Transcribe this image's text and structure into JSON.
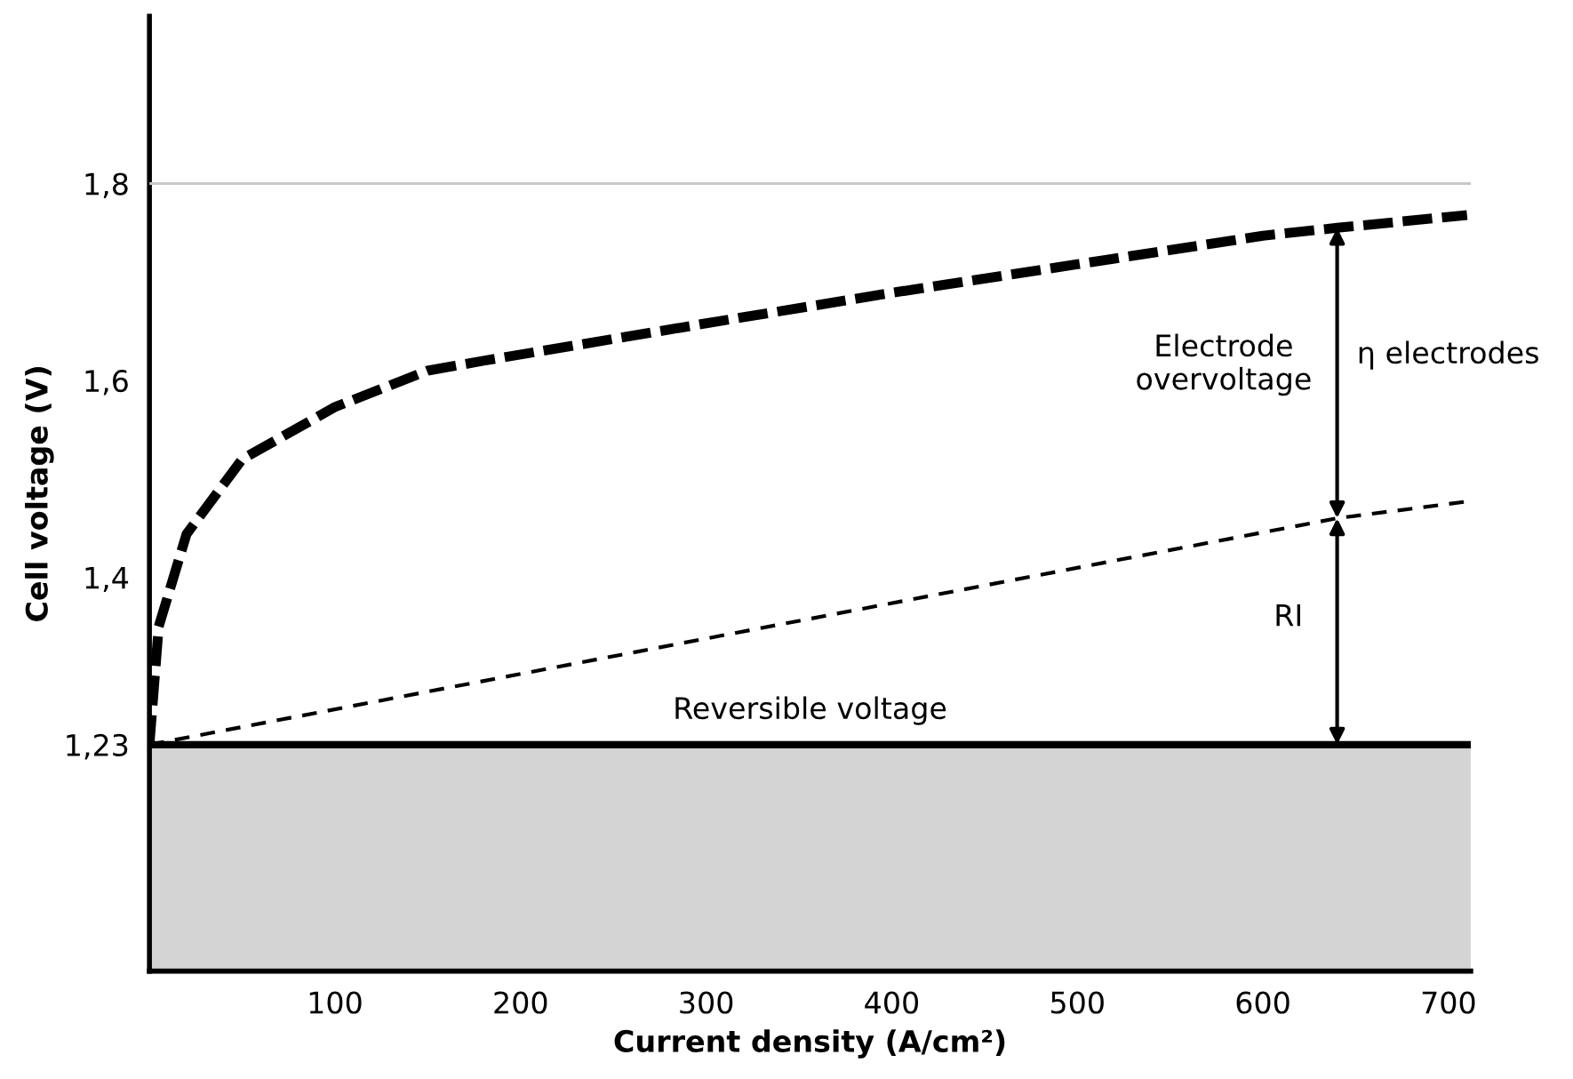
{
  "chart_data": {
    "type": "line",
    "xlabel": "Current density (A/cm²)",
    "ylabel": "Cell voltage (V)",
    "xlim": [
      0,
      712
    ],
    "ylim": [
      1.0,
      1.97
    ],
    "xticks": [
      100,
      200,
      300,
      400,
      500,
      600,
      700
    ],
    "yticks": [
      {
        "value": 1.23,
        "label": "1,23"
      },
      {
        "value": 1.4,
        "label": "1,4"
      },
      {
        "value": 1.6,
        "label": "1,6"
      },
      {
        "value": 1.8,
        "label": "1,8"
      }
    ],
    "series": [
      {
        "color": "#000000",
        "line_style": "dashed",
        "x": [
          0,
          5,
          20,
          50,
          100,
          150,
          180,
          300,
          400,
          500,
          600,
          640,
          710
        ],
        "values": [
          1.23,
          1.35,
          1.444,
          1.52,
          1.573,
          1.61,
          1.62,
          1.658,
          1.689,
          1.718,
          1.747,
          1.755,
          1.768
        ]
      },
      {
        "color": "#000000",
        "line_style": "dashed",
        "x": [
          0,
          640,
          710
        ],
        "values": [
          1.23,
          1.46,
          1.477
        ]
      }
    ],
    "ref_lines": [
      {
        "axis": "y",
        "value": 1.8,
        "color": "#c8c8c8"
      },
      {
        "axis": "y",
        "value": 1.23,
        "label": "Reversible voltage",
        "color": "#000000"
      }
    ],
    "bands": [
      {
        "axis": "y",
        "from": 1.0,
        "to": 1.23,
        "color": "#d4d4d4"
      }
    ],
    "annotations": [
      "Electrode overvoltage",
      "η electrodes",
      "RI"
    ],
    "grid": false,
    "legend": false,
    "marker": "none"
  }
}
